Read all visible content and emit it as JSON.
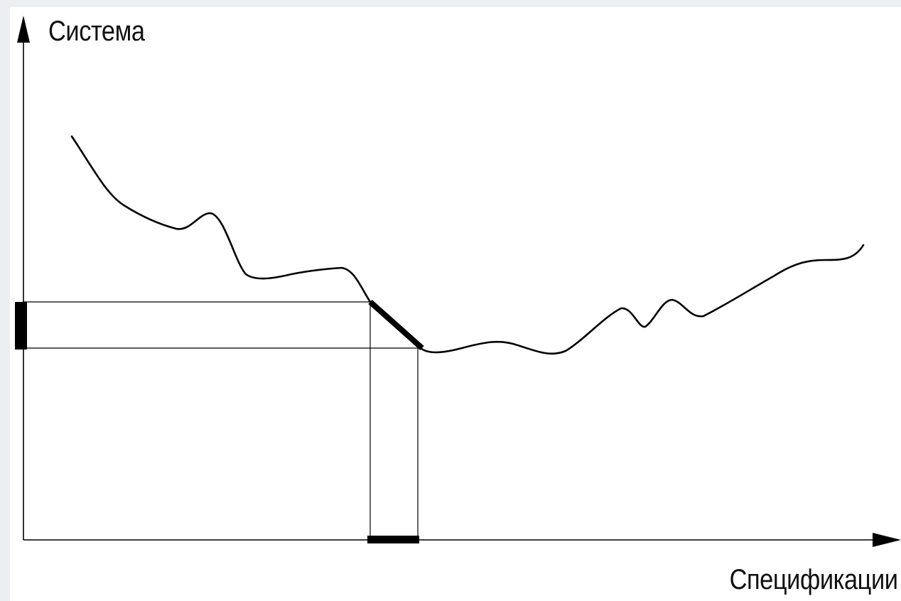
{
  "diagram": {
    "y_axis_label": "Система",
    "x_axis_label": "Спецификации",
    "colors": {
      "line": "#000000",
      "guide": "#000000",
      "background": "#ffffff"
    }
  }
}
